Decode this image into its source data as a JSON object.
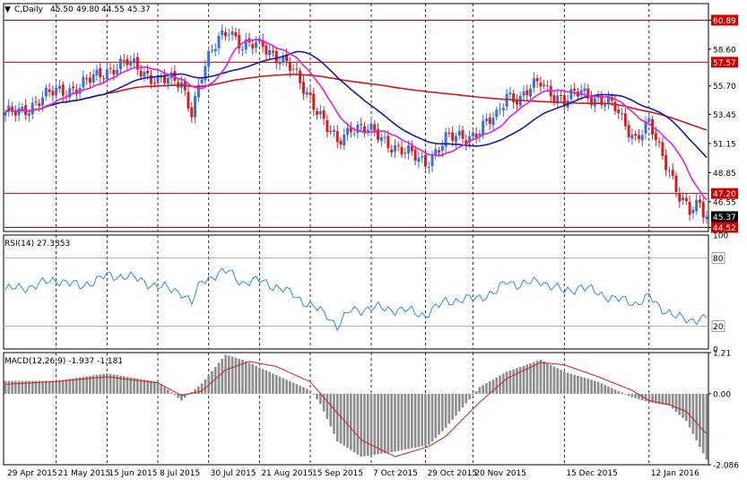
{
  "header": {
    "symbol": "C,Daily",
    "open": "45.50",
    "high": "49.80",
    "low": "44.55",
    "close": "45.37"
  },
  "rsi_label": "RSI(14) 27.3353",
  "macd_label": "MACD(12,26,9) -1.937 -1.181",
  "colors": {
    "background": "#ffffff",
    "grid": "#000000",
    "level_line": "#cc0000",
    "bull": "#3a6fd8",
    "bear": "#d81e1e",
    "ma_fast": "#e020e0",
    "ma_mid": "#1a1aa8",
    "ma_slow": "#cc1a1a",
    "rsi_line": "#2e8fd6",
    "macd_hist": "#8c8c8c",
    "macd_signal": "#d02020"
  },
  "chart_data": [
    {
      "type": "line",
      "name": "price",
      "ylim": [
        44.2,
        62.2
      ],
      "y_ticks": [
        "60.89",
        "58.60",
        "55.70",
        "53.45",
        "51.15",
        "48.85",
        "46.55",
        "44.52"
      ],
      "x_tick_labels": [
        "29 Apr 2015",
        "21 May 2015",
        "15 Jun 2015",
        "8 Jul 2015",
        "30 Jul 2015",
        "21 Aug 2015",
        "15 Sep 2015",
        "7 Oct 2015",
        "29 Oct 2015",
        "20 Nov 2015",
        "15 Dec 2015",
        "12 Jan 2016"
      ],
      "horizontal_levels": [
        60.89,
        57.57,
        47.2,
        44.52
      ],
      "level_labels": [
        "60.89",
        "57.57",
        "47.20",
        "44.52"
      ],
      "current_price": "45.37",
      "close_path": [
        [
          0,
          53.3
        ],
        [
          8,
          54.2
        ],
        [
          15,
          55.3
        ],
        [
          22,
          55.6
        ],
        [
          30,
          57.0
        ],
        [
          36,
          57.5
        ],
        [
          45,
          56.2
        ],
        [
          52,
          55.9
        ],
        [
          55,
          53.8
        ],
        [
          58,
          56.5
        ],
        [
          63,
          59.5
        ],
        [
          66,
          60.4
        ],
        [
          70,
          58.6
        ],
        [
          76,
          59.1
        ],
        [
          80,
          58.0
        ],
        [
          85,
          56.8
        ],
        [
          90,
          54.9
        ],
        [
          95,
          52.2
        ],
        [
          98,
          51.2
        ],
        [
          102,
          52.6
        ],
        [
          110,
          51.8
        ],
        [
          118,
          50.4
        ],
        [
          124,
          49.7
        ],
        [
          130,
          51.4
        ],
        [
          138,
          51.9
        ],
        [
          145,
          53.2
        ],
        [
          148,
          55.2
        ],
        [
          152,
          54.6
        ],
        [
          158,
          56.1
        ],
        [
          165,
          54.3
        ],
        [
          170,
          55.4
        ],
        [
          175,
          54.6
        ],
        [
          180,
          53.9
        ],
        [
          186,
          51.6
        ],
        [
          190,
          52.6
        ],
        [
          193,
          50.7
        ],
        [
          196,
          49.2
        ],
        [
          199,
          47.0
        ],
        [
          202,
          45.6
        ],
        [
          205,
          46.3
        ],
        [
          207,
          45.4
        ]
      ]
    },
    {
      "type": "line",
      "name": "RSI(14)",
      "ylim": [
        0,
        100
      ],
      "y_ticks": [
        "100",
        "80",
        "20",
        "0"
      ],
      "levels": [
        80,
        20
      ],
      "path": [
        [
          0,
          52
        ],
        [
          8,
          55
        ],
        [
          15,
          61
        ],
        [
          22,
          55
        ],
        [
          30,
          64
        ],
        [
          36,
          64
        ],
        [
          45,
          55
        ],
        [
          52,
          50
        ],
        [
          55,
          40
        ],
        [
          58,
          60
        ],
        [
          63,
          66
        ],
        [
          66,
          68
        ],
        [
          70,
          58
        ],
        [
          76,
          60
        ],
        [
          80,
          54
        ],
        [
          85,
          48
        ],
        [
          90,
          38
        ],
        [
          95,
          30
        ],
        [
          98,
          20
        ],
        [
          102,
          34
        ],
        [
          110,
          36
        ],
        [
          118,
          34
        ],
        [
          124,
          30
        ],
        [
          130,
          42
        ],
        [
          138,
          44
        ],
        [
          145,
          50
        ],
        [
          148,
          60
        ],
        [
          152,
          56
        ],
        [
          158,
          60
        ],
        [
          165,
          50
        ],
        [
          170,
          55
        ],
        [
          175,
          49
        ],
        [
          180,
          44
        ],
        [
          186,
          40
        ],
        [
          190,
          46
        ],
        [
          193,
          36
        ],
        [
          196,
          33
        ],
        [
          199,
          27
        ],
        [
          202,
          24
        ],
        [
          205,
          28
        ],
        [
          207,
          27.3
        ]
      ]
    },
    {
      "type": "bar",
      "name": "MACD(12,26,9)",
      "ylim": [
        -2.086,
        1.21
      ],
      "y_ticks": [
        "1.21",
        "0.00",
        "-2.086"
      ],
      "histogram": [
        [
          0,
          0.38
        ],
        [
          15,
          0.38
        ],
        [
          30,
          0.6
        ],
        [
          45,
          0.35
        ],
        [
          52,
          -0.2
        ],
        [
          58,
          0.3
        ],
        [
          65,
          1.15
        ],
        [
          70,
          1.0
        ],
        [
          80,
          0.55
        ],
        [
          90,
          0.1
        ],
        [
          93,
          -0.3
        ],
        [
          98,
          -1.4
        ],
        [
          105,
          -1.85
        ],
        [
          115,
          -1.7
        ],
        [
          125,
          -1.5
        ],
        [
          130,
          -1.0
        ],
        [
          140,
          0.2
        ],
        [
          148,
          0.65
        ],
        [
          158,
          1.0
        ],
        [
          165,
          0.65
        ],
        [
          175,
          0.35
        ],
        [
          185,
          -0.1
        ],
        [
          190,
          -0.25
        ],
        [
          196,
          -0.35
        ],
        [
          201,
          -0.8
        ],
        [
          207,
          -1.937
        ]
      ],
      "signal": [
        [
          0,
          0.28
        ],
        [
          15,
          0.36
        ],
        [
          30,
          0.5
        ],
        [
          45,
          0.32
        ],
        [
          52,
          -0.05
        ],
        [
          58,
          0.08
        ],
        [
          65,
          0.7
        ],
        [
          72,
          0.95
        ],
        [
          80,
          0.8
        ],
        [
          90,
          0.35
        ],
        [
          97,
          -0.45
        ],
        [
          105,
          -1.35
        ],
        [
          115,
          -1.85
        ],
        [
          125,
          -1.55
        ],
        [
          130,
          -1.25
        ],
        [
          140,
          -0.25
        ],
        [
          148,
          0.45
        ],
        [
          158,
          0.92
        ],
        [
          165,
          0.85
        ],
        [
          175,
          0.5
        ],
        [
          185,
          0.1
        ],
        [
          190,
          -0.2
        ],
        [
          196,
          -0.32
        ],
        [
          201,
          -0.52
        ],
        [
          207,
          -1.181
        ]
      ]
    }
  ]
}
